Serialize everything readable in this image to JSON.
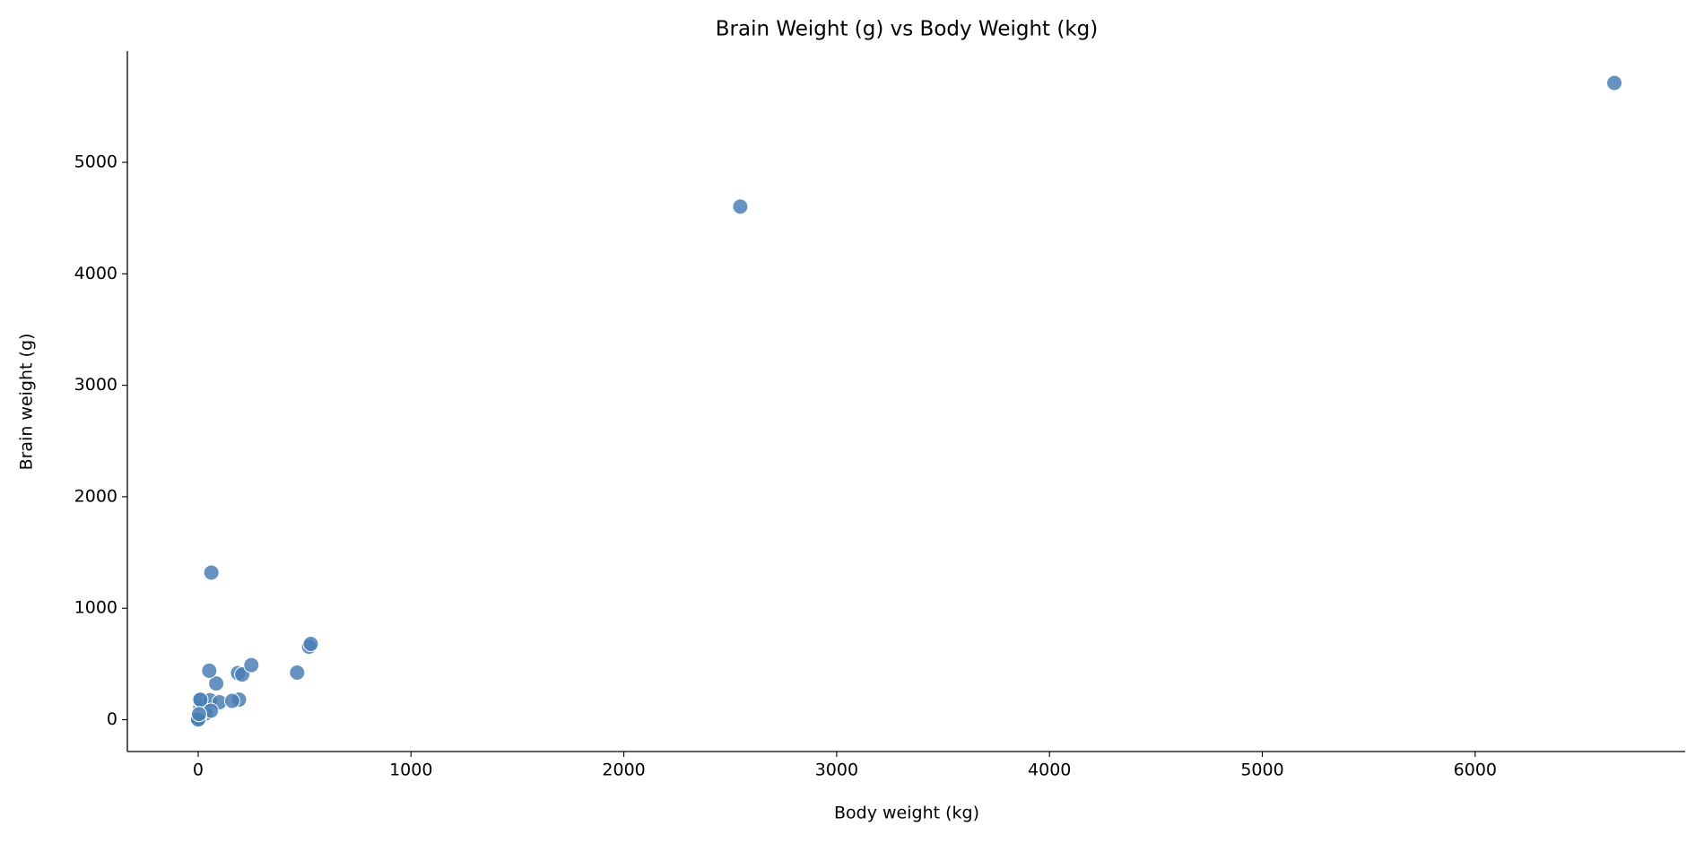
{
  "chart_data": {
    "type": "scatter",
    "title": "Brain Weight (g) vs Body Weight (kg)",
    "x_label": "Body weight (kg)",
    "y_label": "Brain weight (g)",
    "series": [
      {
        "color": "#4a7fb5",
        "x": [
          3.385,
          0.48,
          1.35,
          465,
          36.33,
          27.66,
          14.83,
          1.04,
          4.19,
          0.425,
          0.101,
          0.92,
          1,
          0.005,
          0.06,
          3.5,
          2,
          1.7,
          2547,
          0.023,
          187.1,
          521,
          0.785,
          10,
          3.3,
          0.2,
          1.41,
          529,
          207,
          85,
          0.75,
          62,
          6654,
          3.5,
          6.8,
          35,
          4.05,
          0.12,
          0.023,
          0.01,
          1.4,
          250,
          2.5,
          55.5,
          100,
          52.16,
          10.55,
          0.55,
          60,
          3.6,
          4.288,
          0.28,
          0.075,
          0.122,
          0.048,
          192,
          3,
          160,
          0.9,
          1.62,
          0.104,
          4.235
        ],
        "values": [
          44.5,
          15.5,
          8.1,
          423,
          119.5,
          115,
          98.2,
          5.5,
          58,
          6.4,
          4,
          5.7,
          6.6,
          0.14,
          1,
          10.8,
          12.3,
          6.3,
          4603,
          0.3,
          419,
          655,
          3.5,
          115,
          25.6,
          5,
          17.5,
          680,
          406,
          325,
          12.3,
          1320,
          5712,
          3.9,
          179,
          56,
          17,
          1,
          0.4,
          0.25,
          12.5,
          490,
          12.1,
          175,
          157,
          440,
          179.5,
          2.4,
          81,
          21,
          39.2,
          1.9,
          1.2,
          3,
          0.33,
          180,
          25,
          169,
          2.6,
          11.4,
          2.5,
          50.4
        ]
      }
    ],
    "xlim": [
      -332.7,
      6986.7
    ],
    "ylim": [
      -285.4,
      5997.6
    ],
    "xticks": [
      0,
      1000,
      2000,
      3000,
      4000,
      5000,
      6000
    ],
    "yticks": [
      0,
      1000,
      2000,
      3000,
      4000,
      5000
    ],
    "grid": false
  }
}
